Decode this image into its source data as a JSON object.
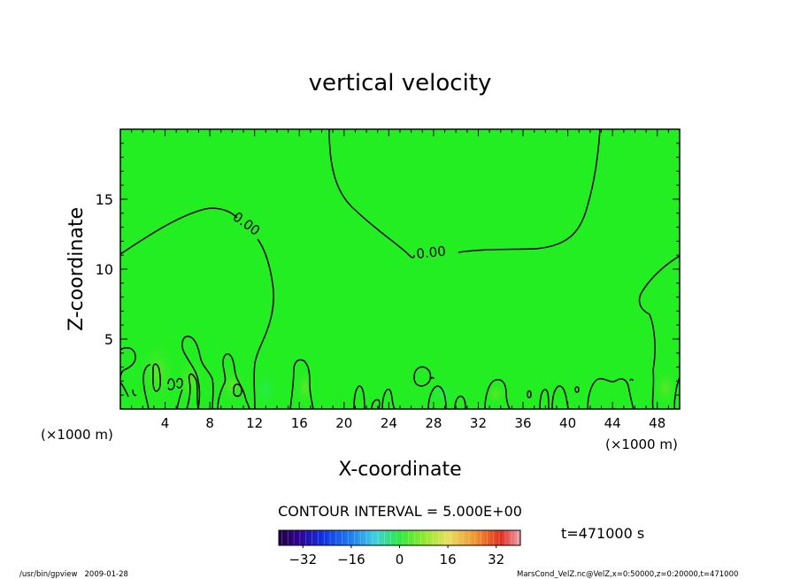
{
  "chart_data": {
    "type": "heatmap",
    "title": "vertical velocity",
    "xlabel": "X-coordinate",
    "ylabel": "Z-coordinate",
    "x_unit": "(×1000 m)",
    "y_unit": "(×1000 m)",
    "xlim": [
      0,
      50
    ],
    "ylim": [
      0,
      20
    ],
    "x_ticks": [
      4,
      8,
      12,
      16,
      20,
      24,
      28,
      32,
      36,
      40,
      44,
      48
    ],
    "y_ticks": [
      5,
      10,
      15
    ],
    "contour_label_1": "0.00",
    "contour_label_2": "0.00",
    "contour_interval": "CONTOUR INTERVAL = 5.000E+00",
    "time_label": "t=471000 s",
    "colorbar_ticks": [
      -32,
      -16,
      0,
      16,
      32
    ],
    "colorbar_range": [
      -40,
      40
    ],
    "field_value_dominant": 0,
    "grid": false,
    "legend": "colorbar-bottom"
  },
  "footer": {
    "left": "/usr/bin/gpview   2009-01-28",
    "right": "MarsCond_VelZ.nc@VelZ,x=0:50000,z=0:20000,t=471000"
  },
  "colors": {
    "field": "#22ee22",
    "line": "#000000"
  }
}
